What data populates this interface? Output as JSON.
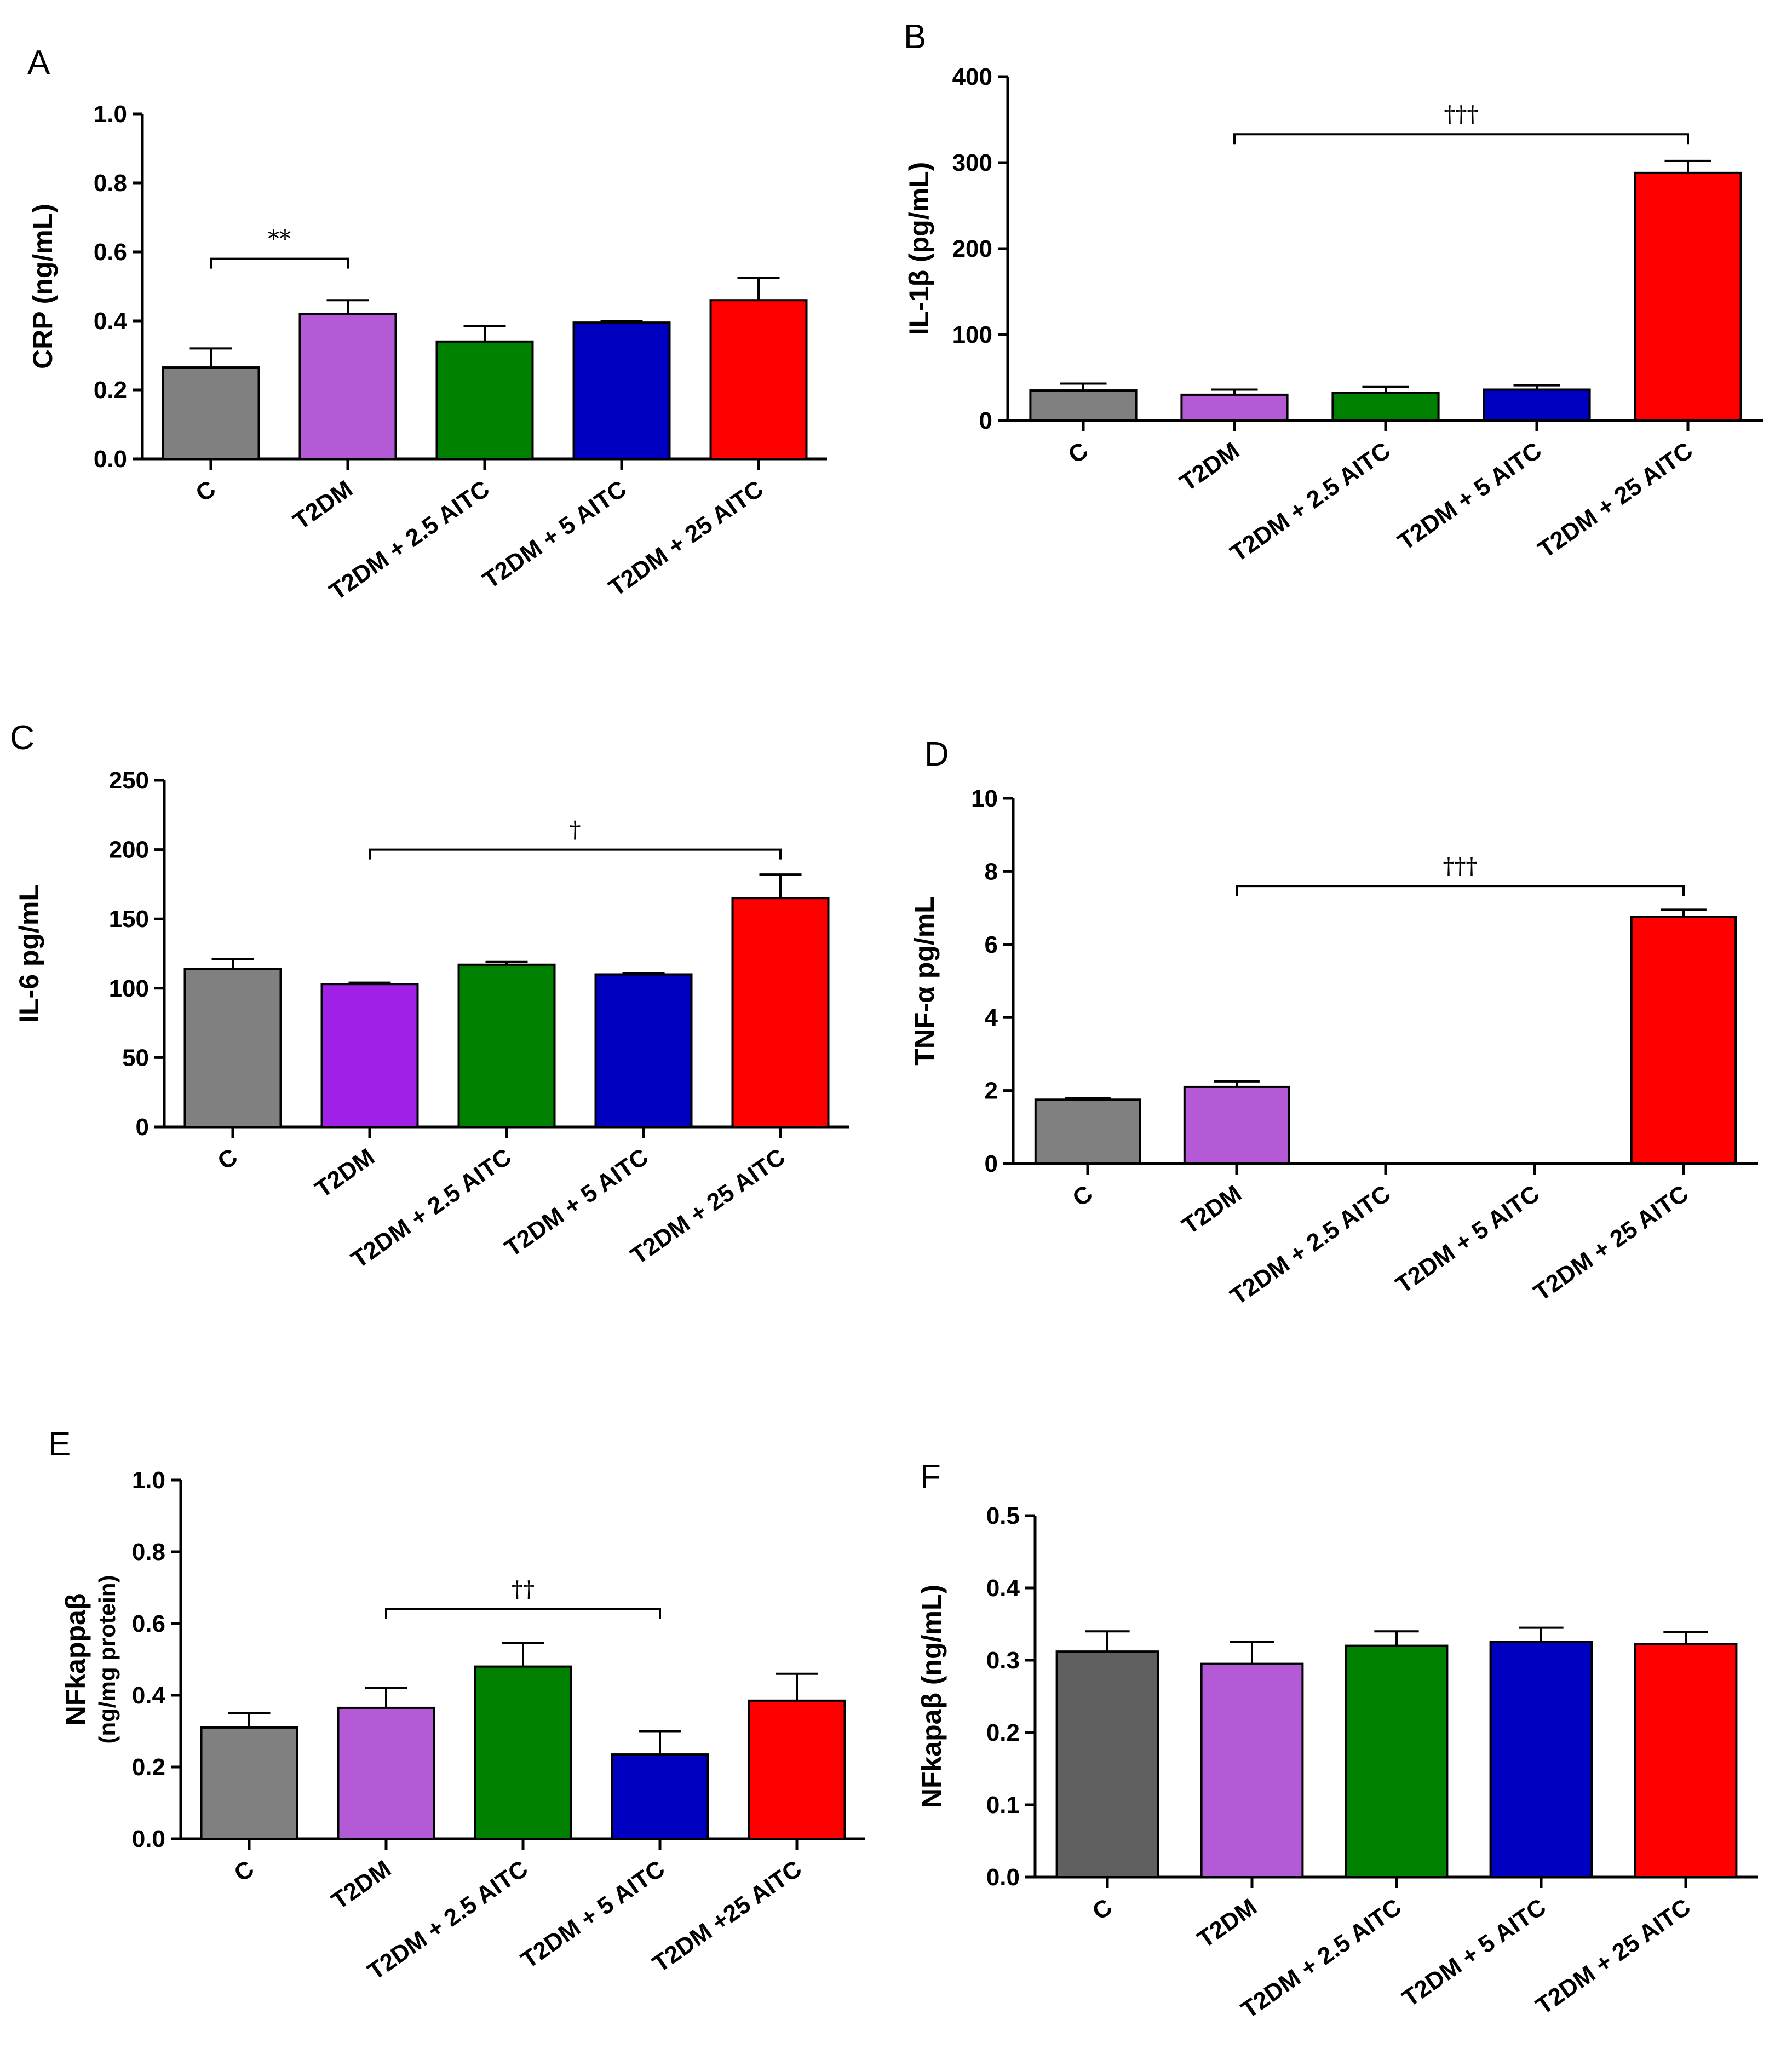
{
  "chart_data": [
    {
      "panel": "A",
      "type": "bar",
      "ylabel": "CRP (ng/mL)",
      "ylabel2": "",
      "ylim": [
        0,
        1.0
      ],
      "yticks": [
        "0.0",
        "0.2",
        "0.4",
        "0.6",
        "0.8",
        "1.0"
      ],
      "categories": [
        "C",
        "T2DM",
        "T2DM + 2.5 AITC",
        "T2DM + 5 AITC",
        "T2DM + 25 AITC"
      ],
      "values": [
        0.265,
        0.42,
        0.34,
        0.395,
        0.46
      ],
      "errors": [
        0.055,
        0.04,
        0.045,
        0.005,
        0.065
      ],
      "colors": [
        "#808080",
        "#b45ad6",
        "#008000",
        "#0000c0",
        "#ff0000"
      ],
      "significance": {
        "from": 0,
        "to": 1,
        "label": "**",
        "level": 0.58
      }
    },
    {
      "panel": "B",
      "type": "bar",
      "ylabel": "IL-1β (pg/mL)",
      "ylabel2": "",
      "ylim": [
        0,
        400
      ],
      "yticks": [
        "0",
        "100",
        "200",
        "300",
        "400"
      ],
      "categories": [
        "C",
        "T2DM",
        "T2DM + 2.5 AITC",
        "T2DM + 5 AITC",
        "T2DM + 25 AITC"
      ],
      "values": [
        35,
        30,
        32,
        36,
        288
      ],
      "errors": [
        8,
        6,
        7,
        5,
        14
      ],
      "colors": [
        "#808080",
        "#b45ad6",
        "#008000",
        "#0000c0",
        "#ff0000"
      ],
      "significance": {
        "from": 1,
        "to": 4,
        "label": "†††",
        "level": 333
      }
    },
    {
      "panel": "C",
      "type": "bar",
      "ylabel": "IL-6  pg/mL",
      "ylabel2": "",
      "ylim": [
        0,
        250
      ],
      "yticks": [
        "0",
        "50",
        "100",
        "150",
        "200",
        "250"
      ],
      "categories": [
        "C",
        "T2DM",
        "T2DM + 2.5 AITC",
        "T2DM + 5 AITC",
        "T2DM + 25 AITC"
      ],
      "values": [
        114,
        103,
        117,
        110,
        165
      ],
      "errors": [
        7,
        1,
        2,
        1,
        17
      ],
      "colors": [
        "#808080",
        "#a020e8",
        "#008000",
        "#0000c0",
        "#ff0000"
      ],
      "significance": {
        "from": 1,
        "to": 4,
        "label": "†",
        "level": 200
      }
    },
    {
      "panel": "D",
      "type": "bar",
      "ylabel": "TNF-α pg/mL",
      "ylabel2": "",
      "ylim": [
        0,
        10
      ],
      "yticks": [
        "0",
        "2",
        "4",
        "6",
        "8",
        "10"
      ],
      "categories": [
        "C",
        "T2DM",
        "T2DM + 2.5 AITC",
        "T2DM + 5 AITC",
        "T2DM + 25 AITC"
      ],
      "values": [
        1.75,
        2.1,
        0,
        0,
        6.75
      ],
      "errors": [
        0.05,
        0.15,
        0,
        0,
        0.2
      ],
      "colors": [
        "#808080",
        "#b45ad6",
        "#008000",
        "#0000c0",
        "#ff0000"
      ],
      "significance": {
        "from": 1,
        "to": 4,
        "label": "†††",
        "level": 7.6
      }
    },
    {
      "panel": "E",
      "type": "bar",
      "ylabel": "NFkappaβ",
      "ylabel2": "(ng/mg protein)",
      "ylim": [
        0,
        1.0
      ],
      "yticks": [
        "0.0",
        "0.2",
        "0.4",
        "0.6",
        "0.8",
        "1.0"
      ],
      "categories": [
        "C",
        "T2DM",
        "T2DM + 2.5 AITC",
        "T2DM + 5 AITC",
        "T2DM +25 AITC"
      ],
      "values": [
        0.31,
        0.365,
        0.48,
        0.235,
        0.385
      ],
      "errors": [
        0.04,
        0.055,
        0.065,
        0.065,
        0.075
      ],
      "colors": [
        "#808080",
        "#b45ad6",
        "#008000",
        "#0000c0",
        "#ff0000"
      ],
      "significance": {
        "from": 1,
        "to": 3,
        "label": "††",
        "level": 0.64
      }
    },
    {
      "panel": "F",
      "type": "bar",
      "ylabel": "NFkapaβ (ng/mL)",
      "ylabel2": "",
      "ylim": [
        0,
        0.5
      ],
      "yticks": [
        "0.0",
        "0.1",
        "0.2",
        "0.3",
        "0.4",
        "0.5"
      ],
      "categories": [
        "C",
        "T2DM",
        "T2DM + 2.5 AITC",
        "T2DM + 5 AITC",
        "T2DM + 25 AITC"
      ],
      "values": [
        0.312,
        0.295,
        0.32,
        0.325,
        0.322
      ],
      "errors": [
        0.028,
        0.03,
        0.02,
        0.02,
        0.017
      ],
      "colors": [
        "#606060",
        "#b45ad6",
        "#008000",
        "#0000c0",
        "#ff0000"
      ],
      "significance": null
    }
  ]
}
